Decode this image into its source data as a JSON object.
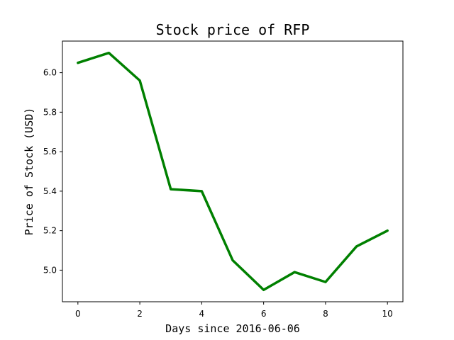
{
  "chart_data": {
    "type": "line",
    "title": "Stock price of RFP",
    "xlabel": "Days since 2016-06-06",
    "ylabel": "Price of Stock (USD)",
    "x": [
      0,
      1,
      2,
      3,
      4,
      5,
      6,
      7,
      8,
      9,
      10
    ],
    "series": [
      {
        "values": [
          6.05,
          6.1,
          5.96,
          5.41,
          5.4,
          5.05,
          4.9,
          4.99,
          4.94,
          5.12,
          5.2
        ]
      }
    ],
    "xlim": [
      -0.5,
      10.5
    ],
    "ylim": [
      4.84,
      6.16
    ],
    "xticks": [
      0,
      2,
      4,
      6,
      8,
      10
    ],
    "xtick_labels": [
      "0",
      "2",
      "4",
      "6",
      "8",
      "10"
    ],
    "yticks": [
      5.0,
      5.2,
      5.4,
      5.6,
      5.8,
      6.0
    ],
    "ytick_labels": [
      "5.0",
      "5.2",
      "5.4",
      "5.6",
      "5.8",
      "6.0"
    ],
    "line_color": "#008000",
    "grid": false,
    "legend": "none"
  }
}
